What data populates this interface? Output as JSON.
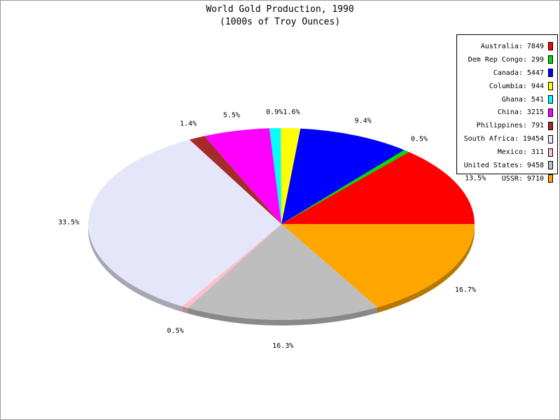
{
  "chart_data": {
    "type": "pie",
    "title": "World Gold Production, 1990",
    "subtitle": "(1000s of Troy Ounces)",
    "legend_position": "top-right",
    "slices": [
      {
        "name": "Australia",
        "value": 7849,
        "label": "Australia: 7849",
        "pct_label": "13.5%",
        "color": "#ff0000"
      },
      {
        "name": "Dem Rep Congo",
        "value": 299,
        "label": "Dem Rep Congo: 299",
        "pct_label": "0.5%",
        "color": "#00dd00"
      },
      {
        "name": "Canada",
        "value": 5447,
        "label": "Canada: 5447",
        "pct_label": "9.4%",
        "color": "#0000ff"
      },
      {
        "name": "Columbia",
        "value": 944,
        "label": "Columbia: 944",
        "pct_label": "1.6%",
        "color": "#ffff00"
      },
      {
        "name": "Ghana",
        "value": 541,
        "label": "Ghana: 541",
        "pct_label": "0.9%",
        "color": "#00ffff"
      },
      {
        "name": "China",
        "value": 3215,
        "label": "China: 3215",
        "pct_label": "5.5%",
        "color": "#ff00ff"
      },
      {
        "name": "Philippines",
        "value": 791,
        "label": "Philippines: 791",
        "pct_label": "1.4%",
        "color": "#a52a2a"
      },
      {
        "name": "South Africa",
        "value": 19454,
        "label": "South Africa: 19454",
        "pct_label": "33.5%",
        "color": "#e6e6fa"
      },
      {
        "name": "Mexico",
        "value": 311,
        "label": "Mexico: 311",
        "pct_label": "0.5%",
        "color": "#ffc0cb"
      },
      {
        "name": "United States",
        "value": 9458,
        "label": "United States: 9458",
        "pct_label": "16.3%",
        "color": "#bebebe"
      },
      {
        "name": "USSR",
        "value": 9710,
        "label": "USSR: 9710",
        "pct_label": "16.7%",
        "color": "#ffa500"
      }
    ]
  }
}
